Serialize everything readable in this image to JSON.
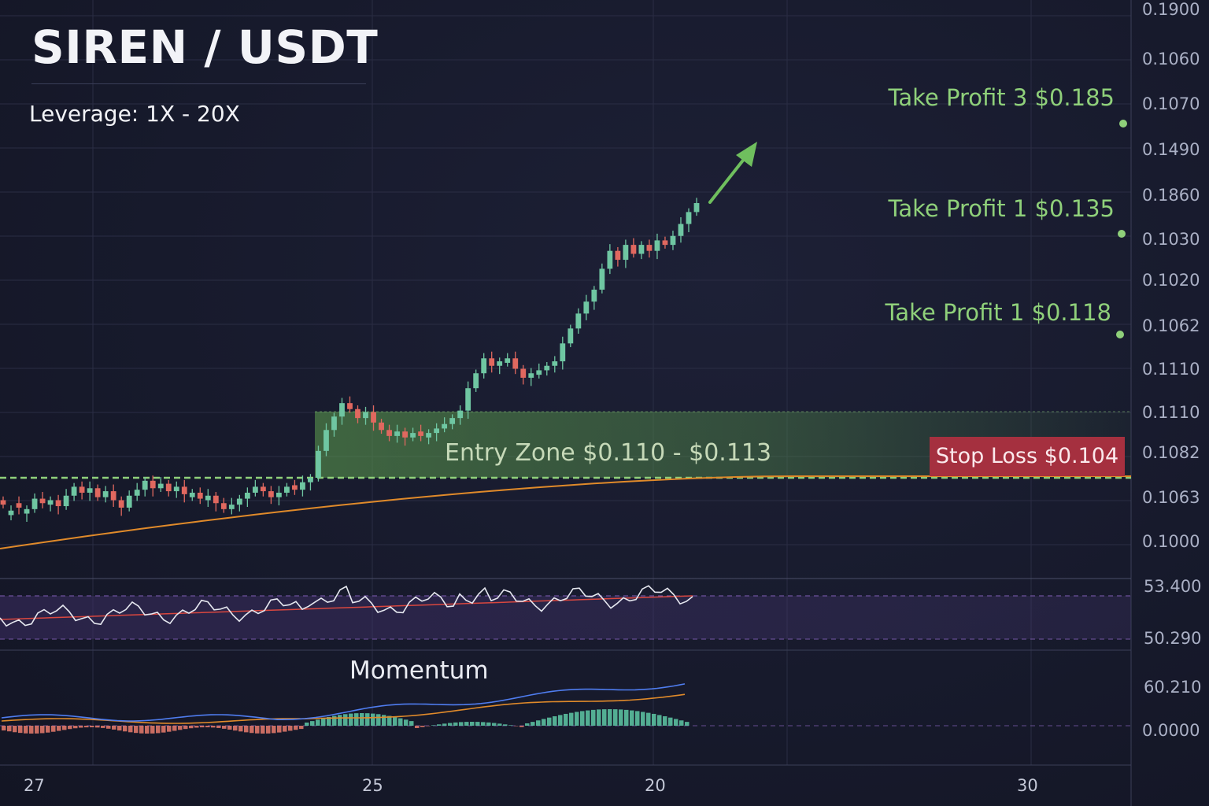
{
  "title": "SIREN / USDT",
  "leverage": "Leverage: 1X - 20X",
  "levels": {
    "tp3": {
      "label": "Take Profit 3 $0.185",
      "price": 0.185
    },
    "tp1a": {
      "label": "Take Profit 1 $0.135",
      "price": 0.135
    },
    "tp1b": {
      "label": "Take Profit 1 $0.118",
      "price": 0.118
    },
    "entry": {
      "label": "Entry Zone $0.110 - $0.113",
      "low": 0.11,
      "high": 0.113
    },
    "stop": {
      "label": "Stop Loss $0.104",
      "price": 0.104
    }
  },
  "y_axis_labels": [
    "0.1900",
    "0.1060",
    "0.1070",
    "0.1490",
    "0.1860",
    "0.1030",
    "0.1020",
    "0.1062",
    "0.1110",
    "0.1110",
    "0.1082",
    "0.1063",
    "0.1000"
  ],
  "rsi_labels": [
    "53.400",
    "50.290"
  ],
  "momentum_panel": {
    "title": "Momentum",
    "labels": [
      "60.210",
      "0.0000"
    ]
  },
  "x_axis_labels": [
    "27",
    "25",
    "20",
    "30"
  ],
  "colors": {
    "background": "#171a2c",
    "bull_candle": "#6fc6a2",
    "bear_candle": "#e0685f",
    "target_green": "#8fd07a",
    "entry_zone": "#6fae5c",
    "stop_loss": "#a5303f",
    "moving_average": "#e08a2a",
    "rsi_band": "#5a3f8a",
    "signal_line": "#4f7df0"
  },
  "chart_data": {
    "type": "candlestick",
    "pair": "SIREN / USDT",
    "candles_close": [
      0.1082,
      0.1078,
      0.108,
      0.1079,
      0.1086,
      0.1083,
      0.1085,
      0.1081,
      0.1088,
      0.1094,
      0.109,
      0.1093,
      0.1087,
      0.1091,
      0.1085,
      0.108,
      0.1088,
      0.1092,
      0.1098,
      0.1093,
      0.1096,
      0.1091,
      0.1094,
      0.1089,
      0.109,
      0.1086,
      0.1088,
      0.1083,
      0.1079,
      0.1082,
      0.1086,
      0.109,
      0.1094,
      0.1091,
      0.1087,
      0.109,
      0.1094,
      0.1092,
      0.1097,
      0.11,
      0.1118,
      0.1132,
      0.1141,
      0.115,
      0.1146,
      0.114,
      0.1144,
      0.1137,
      0.1132,
      0.1128,
      0.1131,
      0.1127,
      0.113,
      0.1128,
      0.113,
      0.1133,
      0.1136,
      0.114,
      0.1145,
      0.116,
      0.117,
      0.118,
      0.1175,
      0.1178,
      0.118,
      0.1173,
      0.1167,
      0.117,
      0.1172,
      0.1175,
      0.1178,
      0.119,
      0.12,
      0.121,
      0.1218,
      0.1226,
      0.124,
      0.1252,
      0.1246,
      0.1256,
      0.125,
      0.1256,
      0.1252,
      0.1259,
      0.1256,
      0.1262,
      0.127,
      0.1278,
      0.1284
    ],
    "candles_direction": [
      "down",
      "up",
      "down",
      "up",
      "up",
      "down",
      "up",
      "down",
      "up",
      "up",
      "down",
      "up",
      "down",
      "up",
      "down",
      "down",
      "up",
      "up",
      "up",
      "down",
      "up",
      "down",
      "up",
      "down",
      "up",
      "down",
      "up",
      "down",
      "down",
      "up",
      "up",
      "up",
      "up",
      "down",
      "down",
      "up",
      "up",
      "down",
      "up",
      "up",
      "up",
      "up",
      "up",
      "up",
      "down",
      "down",
      "up",
      "down",
      "down",
      "down",
      "up",
      "down",
      "up",
      "down",
      "up",
      "up",
      "up",
      "up",
      "up",
      "up",
      "up",
      "up",
      "down",
      "up",
      "up",
      "down",
      "down",
      "up",
      "up",
      "up",
      "up",
      "up",
      "up",
      "up",
      "up",
      "up",
      "up",
      "up",
      "down",
      "up",
      "down",
      "up",
      "down",
      "up",
      "down",
      "up",
      "up",
      "up",
      "up"
    ],
    "moving_average": {
      "from": 0.1035,
      "to": 0.1078
    },
    "targets": [
      0.185,
      0.135,
      0.118
    ],
    "entry_zone": [
      0.11,
      0.113
    ],
    "stop_loss": 0.104,
    "xticks": [
      "27",
      "25",
      "20",
      "30"
    ],
    "panels": [
      "RSI",
      "Momentum"
    ]
  }
}
